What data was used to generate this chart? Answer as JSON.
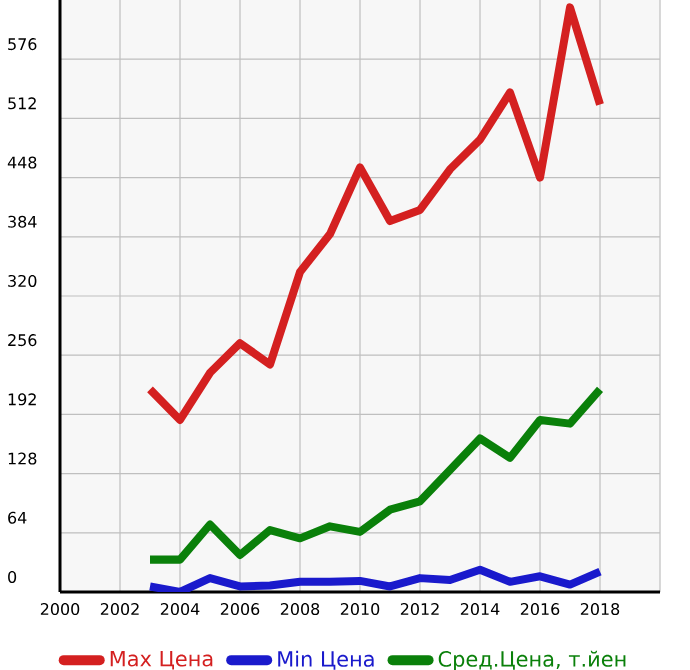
{
  "chart_data": {
    "type": "line",
    "x": [
      2003,
      2004,
      2005,
      2006,
      2007,
      2008,
      2009,
      2010,
      2011,
      2012,
      2013,
      2014,
      2015,
      2016,
      2017,
      2018
    ],
    "series": [
      {
        "name": "Max Цена",
        "color": "#d42020",
        "values": [
          219,
          186,
          237,
          269,
          246,
          346,
          387,
          459,
          401,
          413,
          457,
          489,
          540,
          448,
          632,
          527
        ]
      },
      {
        "name": "Min Цена",
        "color": "#1a1acc",
        "values": [
          6,
          0,
          15,
          6,
          7,
          11,
          11,
          12,
          6,
          15,
          13,
          24,
          11,
          17,
          8,
          22
        ]
      },
      {
        "name": "Сред.Цена, т.йен",
        "color": "#0a800a",
        "values": [
          35,
          35,
          73,
          40,
          67,
          58,
          71,
          65,
          89,
          98,
          132,
          166,
          145,
          186,
          182,
          219
        ]
      }
    ],
    "xlim": [
      2000,
      2020
    ],
    "xticks": [
      2000,
      2002,
      2004,
      2006,
      2008,
      2010,
      2012,
      2014,
      2016,
      2018,
      {
        "value": 2020,
        "label": null
      }
    ],
    "ylim": [
      0,
      640
    ],
    "yticks": [
      0,
      64,
      128,
      192,
      256,
      320,
      384,
      448,
      512,
      576
    ],
    "grid": true,
    "legend": "bottom",
    "marker": "none",
    "line_style": "solid"
  }
}
